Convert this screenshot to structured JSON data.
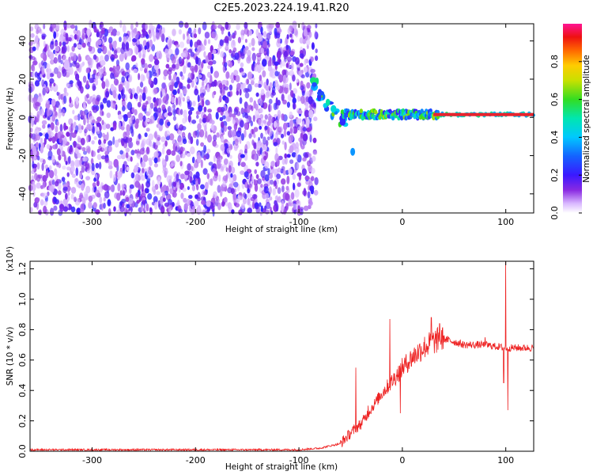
{
  "title": "C2E5.2023.224.19.41.R20",
  "colors": {
    "spectrogram_low": "#7b2ff7",
    "snr_line": "#ee2222",
    "ridge": "#e8232e"
  },
  "chart_data": [
    {
      "id": "spectrogram",
      "type": "heatmap",
      "xlabel": "Height of straight line (km)",
      "ylabel": "Frequency (Hz)",
      "xlim": [
        -360,
        127
      ],
      "ylim": [
        -50,
        49
      ],
      "x_ticks": [
        -300,
        -200,
        -100,
        0,
        100
      ],
      "y_ticks": [
        -40,
        -20,
        0,
        20,
        40
      ],
      "grid": false,
      "colorbar": {
        "label": "Normalized spectral amplitude",
        "range": [
          0,
          1
        ],
        "ticks": [
          "0.0",
          "0.2",
          "0.4",
          "0.6",
          "0.8"
        ],
        "tick_values": [
          0,
          0.2,
          0.4,
          0.6,
          0.8
        ],
        "colormap": "rainbow (white-purple-blue-cyan-green-yellow-red-magenta)"
      },
      "features": {
        "noise_region_x": [
          -360,
          -83
        ],
        "descending_track": [
          [
            -85,
            17
          ],
          [
            -78,
            12
          ],
          [
            -72,
            7
          ],
          [
            -66,
            2
          ],
          [
            -58,
            -2
          ]
        ],
        "tone_band_x": [
          -58,
          127
        ],
        "tone_frequency": 1.5,
        "isolated_blob": [
          -48,
          -18
        ]
      }
    },
    {
      "id": "snr",
      "type": "line",
      "xlabel": "Height of straight line (km)",
      "ylabel": "SNR (10 * v/v)",
      "y_multiplier": "(x10⁴)",
      "xlim": [
        -360,
        127
      ],
      "ylim": [
        0,
        1.25
      ],
      "x_ticks": [
        -300,
        -200,
        -100,
        0,
        100
      ],
      "y_ticks": [
        "0.0",
        "0.2",
        "0.4",
        "0.6",
        "0.8",
        "1.0",
        "1.2"
      ],
      "y_tick_values": [
        0,
        0.2,
        0.4,
        0.6,
        0.8,
        1.0,
        1.2
      ],
      "grid": false,
      "series": [
        {
          "envelope": [
            [
              -360,
              0.01
            ],
            [
              -100,
              0.01
            ],
            [
              -80,
              0.02
            ],
            [
              -60,
              0.05
            ],
            [
              -50,
              0.12
            ],
            [
              -40,
              0.18
            ],
            [
              -30,
              0.28
            ],
            [
              -20,
              0.38
            ],
            [
              -10,
              0.46
            ],
            [
              0,
              0.55
            ],
            [
              10,
              0.62
            ],
            [
              20,
              0.68
            ],
            [
              30,
              0.72
            ],
            [
              40,
              0.74
            ],
            [
              50,
              0.72
            ],
            [
              60,
              0.7
            ],
            [
              70,
              0.7
            ],
            [
              80,
              0.7
            ],
            [
              90,
              0.69
            ],
            [
              100,
              0.68
            ],
            [
              110,
              0.68
            ],
            [
              127,
              0.68
            ]
          ],
          "spikes": [
            [
              -45,
              0.55
            ],
            [
              -33,
              0.3
            ],
            [
              -12,
              0.87
            ],
            [
              -2,
              0.25
            ],
            [
              28,
              0.88
            ],
            [
              36,
              0.84
            ],
            [
              80,
              0.75
            ],
            [
              100,
              1.25
            ],
            [
              102,
              0.27
            ],
            [
              98,
              0.45
            ]
          ]
        }
      ]
    }
  ]
}
